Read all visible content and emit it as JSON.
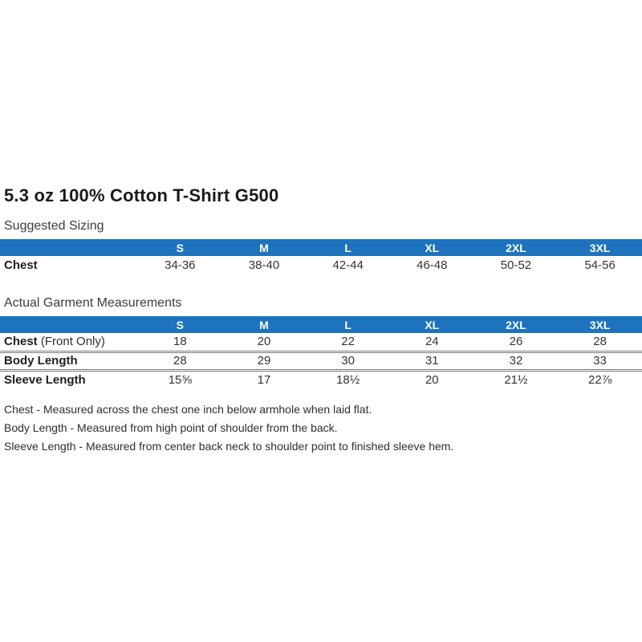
{
  "page": {
    "title": "5.3 oz 100% Cotton T-Shirt G500"
  },
  "suggested_sizing": {
    "label": "Suggested Sizing",
    "columns": [
      "S",
      "M",
      "L",
      "XL",
      "2XL",
      "3XL"
    ],
    "rows": [
      {
        "label": "Chest",
        "label_suffix": "",
        "values": [
          "34-36",
          "38-40",
          "42-44",
          "46-48",
          "50-52",
          "54-56"
        ]
      }
    ]
  },
  "actual_measurements": {
    "label": "Actual Garment Measurements",
    "columns": [
      "S",
      "M",
      "L",
      "XL",
      "2XL",
      "3XL"
    ],
    "rows": [
      {
        "label": "Chest",
        "label_suffix": " (Front Only)",
        "values": [
          "18",
          "20",
          "22",
          "24",
          "26",
          "28"
        ]
      },
      {
        "label": "Body Length",
        "label_suffix": "",
        "values": [
          "28",
          "29",
          "30",
          "31",
          "32",
          "33"
        ]
      },
      {
        "label": "Sleeve Length",
        "label_suffix": "",
        "values": [
          "15⅝",
          "17",
          "18½",
          "20",
          "21½",
          "22⅞"
        ]
      }
    ]
  },
  "notes": [
    "Chest - Measured across the chest one inch below armhole when laid flat.",
    "Body Length - Measured from high point of shoulder from the back.",
    "Sleeve Length - Measured from center back neck to shoulder point to finished sleeve hem."
  ],
  "colors": {
    "header_bg": "#1e73be",
    "header_text": "#ffffff",
    "body_text": "#333333",
    "divider": "#7a7a7a"
  }
}
